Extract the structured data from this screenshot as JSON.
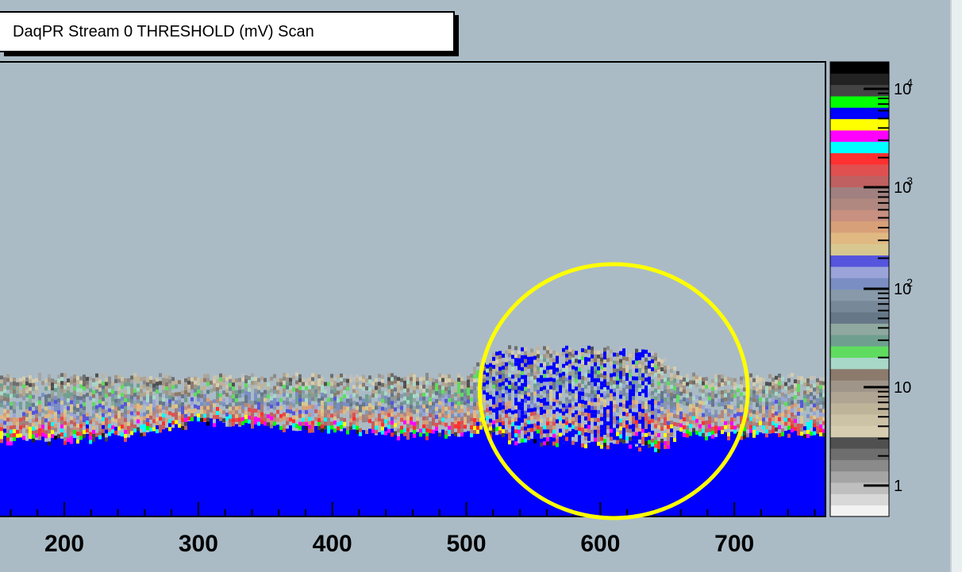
{
  "title": "DaqPR Stream 0 THRESHOLD (mV) Scan",
  "chart_data": {
    "type": "heatmap",
    "title": "DaqPR Stream 0 THRESHOLD (mV) Scan",
    "xlabel": "",
    "ylabel": "",
    "x_ticks": [
      200,
      300,
      400,
      500,
      600,
      700
    ],
    "xlim": [
      152,
      768
    ],
    "z_scale": "log",
    "z_ticks": [
      "1",
      "10",
      "10^2",
      "10^3",
      "10^4"
    ],
    "highlight": {
      "shape": "ellipse",
      "color": "#ffff00",
      "x_range": [
        510,
        710
      ]
    },
    "band_profile": {
      "x": [
        152,
        200,
        250,
        300,
        350,
        400,
        450,
        500,
        515,
        530,
        560,
        600,
        640,
        660,
        700,
        768
      ],
      "blue_top": [
        0.83,
        0.83,
        0.82,
        0.79,
        0.8,
        0.81,
        0.82,
        0.82,
        0.81,
        0.83,
        0.84,
        0.84,
        0.85,
        0.82,
        0.82,
        0.82
      ],
      "noise_top": [
        0.69,
        0.69,
        0.69,
        0.69,
        0.69,
        0.69,
        0.69,
        0.69,
        0.64,
        0.63,
        0.63,
        0.63,
        0.64,
        0.69,
        0.69,
        0.69
      ]
    },
    "colors": {
      "palette_low_to_high": [
        "#f2f2f2",
        "#d8d8d8",
        "#bfbfbf",
        "#a5a5a5",
        "#8a8a8a",
        "#6e6e6e",
        "#505050",
        "#d6cdb0",
        "#ccc3a7",
        "#beb49a",
        "#b0a593",
        "#a09589",
        "#8c7a6d",
        "#a8d8c8",
        "#5fdc5f",
        "#6f9f8f",
        "#8fa8a0",
        "#667788",
        "#778899",
        "#8899aa",
        "#7a8ec4",
        "#9aa4d8",
        "#5555dd",
        "#d8c890",
        "#e0b882",
        "#d8a078",
        "#c89080",
        "#b08880",
        "#a08080",
        "#c06060",
        "#e05050",
        "#ff3030",
        "#00ffff",
        "#ff00ff",
        "#ffff00",
        "#0000ff",
        "#00ff00",
        "#444444",
        "#222222",
        "#000000"
      ],
      "canvas_bg": "#aabbc6",
      "fill": "#0000ff"
    }
  }
}
